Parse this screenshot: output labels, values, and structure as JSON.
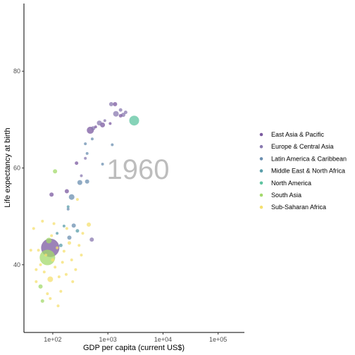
{
  "chart_data": {
    "type": "scatter",
    "title": "",
    "xlabel": "GDP per capita (current US$)",
    "ylabel": "Life expectancy at birth",
    "x_scale": "log10",
    "xlim": [
      30,
      300000
    ],
    "ylim": [
      26,
      94
    ],
    "x_ticks": [
      {
        "value": 100,
        "label": "1e+02"
      },
      {
        "value": 1000,
        "label": "1e+03"
      },
      {
        "value": 10000,
        "label": "1e+04"
      },
      {
        "value": 100000,
        "label": "1e+05"
      }
    ],
    "y_ticks": [
      {
        "value": 40,
        "label": "40"
      },
      {
        "value": 60,
        "label": "60"
      },
      {
        "value": 80,
        "label": "80"
      }
    ],
    "annotation": "1960",
    "grid": false,
    "legend_position": "right",
    "series": [
      {
        "name": "East Asia & Pacific",
        "color": "#7b5aa0",
        "points": [
          {
            "x": 90,
            "y": 43.5,
            "size": 13
          },
          {
            "x": 480,
            "y": 67.8,
            "size": 5
          },
          {
            "x": 1350,
            "y": 73.2,
            "size": 3
          },
          {
            "x": 1700,
            "y": 70.8,
            "size": 2.5
          },
          {
            "x": 180,
            "y": 55.2,
            "size": 3
          },
          {
            "x": 95,
            "y": 54.5,
            "size": 3
          },
          {
            "x": 800,
            "y": 68.9,
            "size": 3.5
          },
          {
            "x": 1100,
            "y": 69.2,
            "size": 2
          },
          {
            "x": 270,
            "y": 61.0,
            "size": 2.5
          },
          {
            "x": 600,
            "y": 68.5,
            "size": 2
          }
        ]
      },
      {
        "name": "Europe & Central Asia",
        "color": "#8a7ab0",
        "points": [
          {
            "x": 1400,
            "y": 71.2,
            "size": 4
          },
          {
            "x": 1900,
            "y": 71.0,
            "size": 3
          },
          {
            "x": 700,
            "y": 69.3,
            "size": 3.5
          },
          {
            "x": 1150,
            "y": 73.2,
            "size": 3
          },
          {
            "x": 1700,
            "y": 72.0,
            "size": 2.5
          },
          {
            "x": 2100,
            "y": 71.5,
            "size": 2.5
          },
          {
            "x": 540,
            "y": 68.2,
            "size": 3
          },
          {
            "x": 390,
            "y": 62.0,
            "size": 2
          },
          {
            "x": 880,
            "y": 69.8,
            "size": 2
          },
          {
            "x": 510,
            "y": 45.2,
            "size": 3
          },
          {
            "x": 330,
            "y": 58.4,
            "size": 2
          }
        ]
      },
      {
        "name": "Latin America & Caribbean",
        "color": "#6b8fb0",
        "points": [
          {
            "x": 310,
            "y": 57.0,
            "size": 3.5
          },
          {
            "x": 220,
            "y": 54.0,
            "size": 4
          },
          {
            "x": 420,
            "y": 57.2,
            "size": 3
          },
          {
            "x": 190,
            "y": 51.5,
            "size": 2
          },
          {
            "x": 420,
            "y": 63.0,
            "size": 2
          },
          {
            "x": 240,
            "y": 48.1,
            "size": 3
          },
          {
            "x": 200,
            "y": 45.6,
            "size": 3
          },
          {
            "x": 390,
            "y": 65.0,
            "size": 2
          },
          {
            "x": 520,
            "y": 66.0,
            "size": 2
          },
          {
            "x": 800,
            "y": 60.8,
            "size": 2
          },
          {
            "x": 1200,
            "y": 64.8,
            "size": 2
          }
        ]
      },
      {
        "name": "Middle East & North Africa",
        "color": "#5a9eaa",
        "points": [
          {
            "x": 280,
            "y": 47.0,
            "size": 2.5
          },
          {
            "x": 160,
            "y": 48.0,
            "size": 2
          },
          {
            "x": 190,
            "y": 52.0,
            "size": 2
          },
          {
            "x": 120,
            "y": 46.5,
            "size": 2
          },
          {
            "x": 140,
            "y": 44.0,
            "size": 2.5
          }
        ]
      },
      {
        "name": "North America",
        "color": "#5ec4a0",
        "points": [
          {
            "x": 3000,
            "y": 69.8,
            "size": 7
          }
        ]
      },
      {
        "name": "South Asia",
        "color": "#a3d96b",
        "points": [
          {
            "x": 80,
            "y": 41.5,
            "size": 11
          },
          {
            "x": 85,
            "y": 45.0,
            "size": 4
          },
          {
            "x": 110,
            "y": 59.3,
            "size": 3
          },
          {
            "x": 60,
            "y": 35.5,
            "size": 3
          },
          {
            "x": 65,
            "y": 32.5,
            "size": 2.5
          }
        ]
      },
      {
        "name": "Sub-Saharan Africa",
        "color": "#f5e070",
        "points": [
          {
            "x": 90,
            "y": 37.0,
            "size": 4
          },
          {
            "x": 50,
            "y": 36.5,
            "size": 2
          },
          {
            "x": 60,
            "y": 40.0,
            "size": 2
          },
          {
            "x": 70,
            "y": 38.5,
            "size": 2
          },
          {
            "x": 75,
            "y": 42.0,
            "size": 2
          },
          {
            "x": 100,
            "y": 41.0,
            "size": 2.5
          },
          {
            "x": 110,
            "y": 39.5,
            "size": 2
          },
          {
            "x": 120,
            "y": 43.5,
            "size": 2
          },
          {
            "x": 130,
            "y": 37.5,
            "size": 2
          },
          {
            "x": 140,
            "y": 34.5,
            "size": 2
          },
          {
            "x": 150,
            "y": 40.5,
            "size": 2
          },
          {
            "x": 160,
            "y": 42.8,
            "size": 2
          },
          {
            "x": 175,
            "y": 38.0,
            "size": 2
          },
          {
            "x": 200,
            "y": 44.5,
            "size": 2.5
          },
          {
            "x": 220,
            "y": 41.0,
            "size": 2
          },
          {
            "x": 260,
            "y": 39.0,
            "size": 2
          },
          {
            "x": 300,
            "y": 44.0,
            "size": 2
          },
          {
            "x": 450,
            "y": 48.3,
            "size": 3
          },
          {
            "x": 350,
            "y": 46.5,
            "size": 2
          },
          {
            "x": 55,
            "y": 43.0,
            "size": 2
          },
          {
            "x": 45,
            "y": 47.5,
            "size": 2
          },
          {
            "x": 65,
            "y": 49.0,
            "size": 2
          },
          {
            "x": 95,
            "y": 46.0,
            "size": 2
          },
          {
            "x": 125,
            "y": 31.5,
            "size": 2
          },
          {
            "x": 80,
            "y": 34.0,
            "size": 2
          },
          {
            "x": 105,
            "y": 48.5,
            "size": 2
          },
          {
            "x": 180,
            "y": 47.5,
            "size": 2
          },
          {
            "x": 280,
            "y": 53.5,
            "size": 2
          },
          {
            "x": 40,
            "y": 43.0,
            "size": 2
          },
          {
            "x": 230,
            "y": 36.5,
            "size": 2
          },
          {
            "x": 330,
            "y": 42.0,
            "size": 2
          },
          {
            "x": 90,
            "y": 33.0,
            "size": 2
          },
          {
            "x": 50,
            "y": 39.0,
            "size": 2
          }
        ]
      }
    ]
  }
}
